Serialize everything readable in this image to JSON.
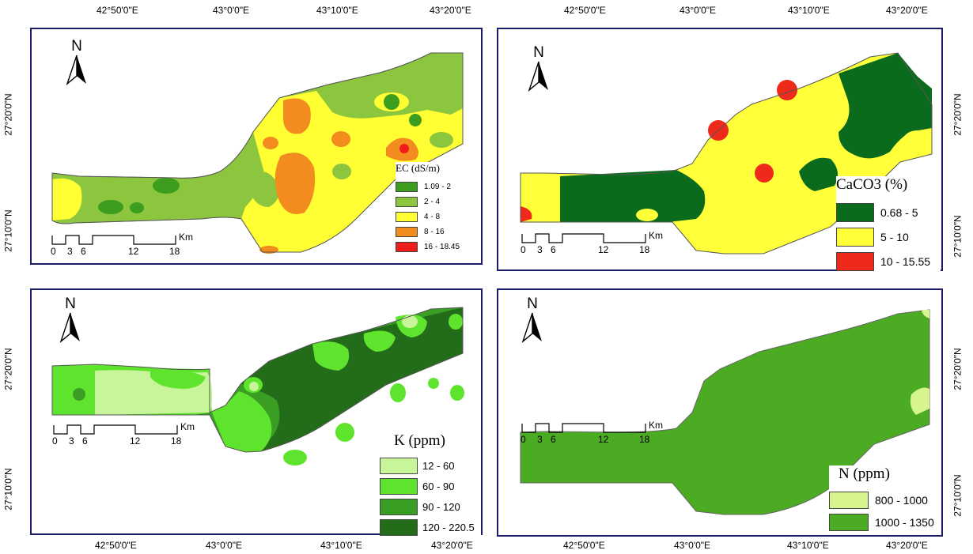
{
  "axes": {
    "top_left": [
      "42°50'0\"E",
      "43°0'0\"E",
      "43°10'0\"E",
      "43°20'0\"E"
    ],
    "top_right": [
      "42°50'0\"E",
      "43°0'0\"E",
      "43°10'0\"E",
      "43°20'0\"E"
    ],
    "bottom_left": [
      "42°50'0\"E",
      "43°0'0\"E",
      "43°10'0\"E",
      "43°20'0\"E"
    ],
    "bottom_right": [
      "42°50'0\"E",
      "43°0'0\"E",
      "43°10'0\"E",
      "43°20'0\"E"
    ],
    "lat_top": [
      "27°20'0\"N",
      "27°10'0\"N"
    ],
    "lat_bottom": [
      "27°20'0\"N",
      "27°10'0\"N"
    ]
  },
  "north_letter": "N",
  "scale": {
    "ticks": [
      "0",
      "3",
      "6",
      "12",
      "18"
    ],
    "unit": "Km"
  },
  "maps": {
    "ec": {
      "title": "EC (dS/m)",
      "classes": [
        {
          "label": "1.09 - 2",
          "color": "#3c9d1e"
        },
        {
          "label": "2 - 4",
          "color": "#8cc63f"
        },
        {
          "label": "4 - 8",
          "color": "#ffff33"
        },
        {
          "label": "8 - 16",
          "color": "#f28c1e"
        },
        {
          "label": "16 - 18.45",
          "color": "#ee1c1c"
        }
      ]
    },
    "caco3": {
      "title": "CaCO3 (%)",
      "classes": [
        {
          "label": "0.68 - 5",
          "color": "#0b6b1c"
        },
        {
          "label": "5 - 10",
          "color": "#ffff3a"
        },
        {
          "label": "10 - 15.55",
          "color": "#ee2a1a"
        }
      ]
    },
    "k": {
      "title": "K (ppm)",
      "classes": [
        {
          "label": "12 - 60",
          "color": "#c8f59a"
        },
        {
          "label": "60 - 90",
          "color": "#5fe42e"
        },
        {
          "label": "90 - 120",
          "color": "#3b9e24"
        },
        {
          "label": "120 - 220.5",
          "color": "#236d1a"
        }
      ]
    },
    "n": {
      "title": "N (ppm)",
      "classes": [
        {
          "label": "800 - 1000",
          "color": "#d6f58e"
        },
        {
          "label": "1000 - 1350",
          "color": "#4bab22"
        }
      ]
    }
  }
}
